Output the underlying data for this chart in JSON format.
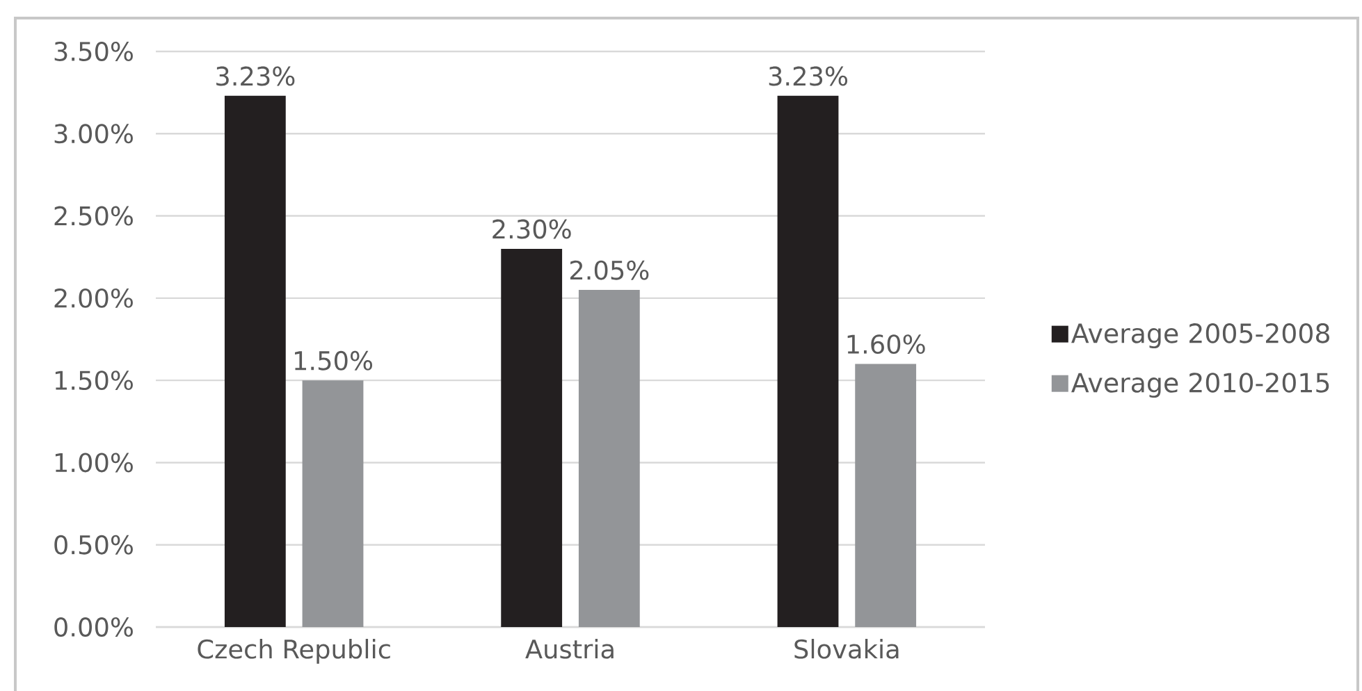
{
  "chart_data": {
    "type": "bar",
    "categories": [
      "Czech Republic",
      "Austria",
      "Slovakia"
    ],
    "series": [
      {
        "name": "Average 2005-2008",
        "color": "#231f20",
        "values": [
          3.23,
          2.3,
          3.23
        ],
        "value_labels": [
          "3.23%",
          "2.30%",
          "3.23%"
        ]
      },
      {
        "name": "Average 2010-2015",
        "color": "#939598",
        "values": [
          1.5,
          2.05,
          1.6
        ],
        "value_labels": [
          "1.50%",
          "2.05%",
          "1.60%"
        ]
      }
    ],
    "ylim": [
      0,
      3.5
    ],
    "yticks": [
      {
        "value": 0,
        "label": "0.00%"
      },
      {
        "value": 0.5,
        "label": "0.50%"
      },
      {
        "value": 1,
        "label": "1.00%"
      },
      {
        "value": 1.5,
        "label": "1.50%"
      },
      {
        "value": 2,
        "label": "2.00%"
      },
      {
        "value": 2.5,
        "label": "2.50%"
      },
      {
        "value": 3,
        "label": "3.00%"
      },
      {
        "value": 3.5,
        "label": "3.50%"
      }
    ],
    "grid": "y",
    "legend": "right"
  }
}
